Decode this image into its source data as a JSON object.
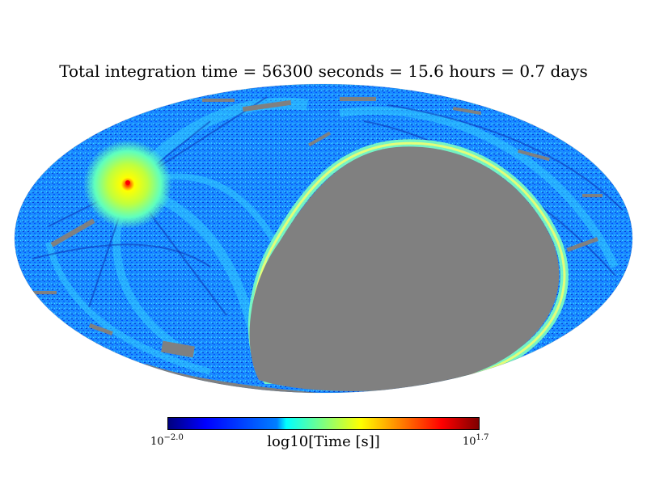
{
  "title": "Total integration time = 56300 seconds = 15.6 hours = 0.7 days",
  "projection": "Mollweide",
  "colorbar": {
    "label": "log10[Time [s]]",
    "min_base": "10",
    "min_exp": "−2.0",
    "max_base": "10",
    "max_exp": "1.7",
    "colormap": "jet"
  },
  "colors": {
    "no_coverage": "#808080",
    "background_field": "#1a8cff",
    "hotspot": "#ff0000"
  }
}
